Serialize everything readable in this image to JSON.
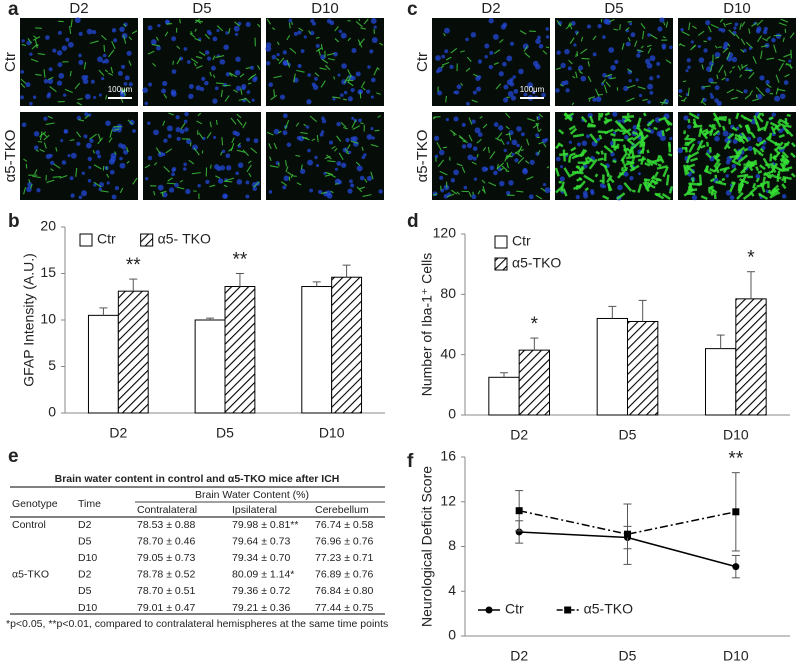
{
  "image_panels": [
    {
      "panel": "a",
      "columns": [
        "D2",
        "D5",
        "D10"
      ],
      "rows": [
        "Ctr",
        "α5-TKO"
      ],
      "scale_bar": "100μm"
    },
    {
      "panel": "c",
      "columns": [
        "D2",
        "D5",
        "D10"
      ],
      "rows": [
        "Ctr",
        "α5-TKO"
      ],
      "scale_bar": "100μm"
    }
  ],
  "chart_data": [
    {
      "type": "bar",
      "panel": "b",
      "y_label": "GFAP Intensity (A.U.)",
      "categories": [
        "D2",
        "D5",
        "D10"
      ],
      "ylim": [
        0,
        20
      ],
      "yticks": [
        0,
        5,
        10,
        15,
        20
      ],
      "legend": "top-left",
      "legend_layout": "horizontal",
      "error_direction": "up",
      "series": [
        {
          "name": "Ctr",
          "color": "#000000",
          "pattern": "open",
          "values": [
            10.5,
            10.0,
            13.6
          ],
          "errors": [
            0.8,
            0.2,
            0.5
          ],
          "significance": [
            null,
            null,
            null
          ]
        },
        {
          "name": "α5- TKO",
          "color": "#000000",
          "pattern": "hatch",
          "values": [
            13.1,
            13.6,
            14.6
          ],
          "errors": [
            1.3,
            1.4,
            1.3
          ],
          "significance": [
            "**",
            "**",
            null
          ]
        }
      ]
    },
    {
      "type": "bar",
      "panel": "d",
      "y_label": "Number of Iba-1⁺ Cells",
      "categories": [
        "D2",
        "D5",
        "D10"
      ],
      "ylim": [
        0,
        120
      ],
      "yticks": [
        0,
        40,
        80,
        120
      ],
      "legend": "top-left",
      "legend_layout": "vertical",
      "error_direction": "up",
      "series": [
        {
          "name": "Ctr",
          "color": "#000000",
          "pattern": "open",
          "values": [
            25,
            64,
            44
          ],
          "errors": [
            3,
            8,
            9
          ],
          "significance": [
            null,
            null,
            null
          ]
        },
        {
          "name": "α5-TKO",
          "color": "#000000",
          "pattern": "hatch",
          "values": [
            43,
            62,
            77
          ],
          "errors": [
            8,
            14,
            18
          ],
          "significance": [
            "*",
            null,
            "*"
          ]
        }
      ]
    },
    {
      "type": "line",
      "panel": "f",
      "y_label": "Neurological Deficit Score",
      "categories": [
        "D2",
        "D5",
        "D10"
      ],
      "ylim": [
        0,
        16
      ],
      "yticks": [
        0,
        4,
        8,
        12,
        16
      ],
      "legend": "bottom-left",
      "legend_layout": "horizontal",
      "error_direction": "both",
      "series": [
        {
          "name": "Ctr",
          "color": "#000000",
          "marker": "circle",
          "dash": "solid",
          "values": [
            9.3,
            8.8,
            6.2
          ],
          "errors": [
            1.0,
            1.0,
            1.0
          ],
          "significance": [
            null,
            null,
            null
          ]
        },
        {
          "name": "α5-TKO",
          "color": "#000000",
          "marker": "square",
          "dash": "dashdot",
          "values": [
            11.2,
            9.1,
            11.1
          ],
          "errors": [
            1.8,
            2.7,
            3.5
          ],
          "significance": [
            null,
            null,
            "**"
          ]
        }
      ]
    }
  ],
  "table": {
    "panel": "e",
    "title": "Brain water content in control and α5-TKO mice after ICH",
    "headers": [
      "Genotype",
      "Time",
      "Brain Water Content (%)"
    ],
    "subheaders": [
      "Contralateral",
      "Ipsilateral",
      "Cerebellum"
    ],
    "rows": [
      [
        "Control",
        "D2",
        "78.53 ± 0.88",
        "79.98 ± 0.81**",
        "76.74 ± 0.58"
      ],
      [
        null,
        "D5",
        "78.70 ± 0.46",
        "79.64 ± 0.73",
        "76.96 ± 0.76"
      ],
      [
        null,
        "D10",
        "79.05 ± 0.73",
        "79.34 ± 0.70",
        "77.23 ± 0.71"
      ],
      [
        "α5-TKO",
        "D2",
        "78.78 ± 0.52",
        "80.09 ± 1.14*",
        "76.89 ± 0.76"
      ],
      [
        null,
        "D5",
        "78.70 ± 0.51",
        "79.36 ± 0.72",
        "76.84 ± 0.80"
      ],
      [
        null,
        "D10",
        "79.01 ± 0.47",
        "79.21 ± 0.36",
        "77.44 ± 0.75"
      ]
    ],
    "footnote": "*p<0.05, **p<0.01, compared to contralateral hemispheres at the same time points"
  }
}
